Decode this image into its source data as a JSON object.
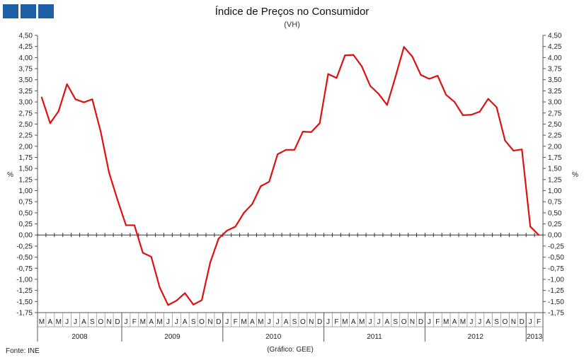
{
  "header": {
    "title": "Índice de Preços no Consumidor",
    "subtitle": "(VH)"
  },
  "footer": {
    "source": "Fonte: INE",
    "credit": "(Gráfico: GEE)"
  },
  "colors": {
    "line": "#dd1111",
    "logo": "#1f5fa8",
    "axis": "#555555"
  },
  "chart_data": {
    "type": "line",
    "title": "Índice de Preços no Consumidor",
    "subtitle": "(VH)",
    "ylabel": "%",
    "ylabel_right": "%",
    "ylim": [
      -1.75,
      4.5
    ],
    "ytick_step": 0.25,
    "grid": false,
    "legend": "none",
    "month_labels": [
      "M",
      "A",
      "M",
      "J",
      "J",
      "A",
      "S",
      "O",
      "N",
      "D",
      "J",
      "F",
      "M",
      "A",
      "M",
      "J",
      "J",
      "A",
      "S",
      "O",
      "N",
      "D",
      "J",
      "F",
      "M",
      "A",
      "M",
      "J",
      "J",
      "A",
      "S",
      "O",
      "N",
      "D",
      "J",
      "F",
      "M",
      "A",
      "M",
      "J",
      "J",
      "A",
      "S",
      "O",
      "N",
      "D",
      "J",
      "F",
      "M",
      "A",
      "M",
      "J",
      "J",
      "A",
      "S",
      "O",
      "N",
      "D",
      "J",
      "F"
    ],
    "years": [
      {
        "label": "2008",
        "start": 0,
        "count": 10
      },
      {
        "label": "2009",
        "start": 10,
        "count": 12
      },
      {
        "label": "2010",
        "start": 22,
        "count": 12
      },
      {
        "label": "2011",
        "start": 34,
        "count": 12
      },
      {
        "label": "2012",
        "start": 46,
        "count": 12
      },
      {
        "label": "2013",
        "start": 58,
        "count": 2
      }
    ],
    "series": [
      {
        "values": [
          3.1,
          2.52,
          2.79,
          3.4,
          3.06,
          2.99,
          3.06,
          2.33,
          1.4,
          0.79,
          0.22,
          0.22,
          -0.4,
          -0.49,
          -1.18,
          -1.58,
          -1.48,
          -1.31,
          -1.57,
          -1.47,
          -0.62,
          -0.08,
          0.1,
          0.19,
          0.5,
          0.7,
          1.1,
          1.2,
          1.82,
          1.92,
          1.92,
          2.33,
          2.32,
          2.52,
          3.63,
          3.54,
          4.05,
          4.06,
          3.8,
          3.36,
          3.18,
          2.93,
          3.57,
          4.24,
          4.02,
          3.61,
          3.52,
          3.59,
          3.16,
          3.0,
          2.7,
          2.71,
          2.78,
          3.07,
          2.88,
          2.13,
          1.9,
          1.93,
          0.19,
          0.0
        ]
      }
    ]
  }
}
